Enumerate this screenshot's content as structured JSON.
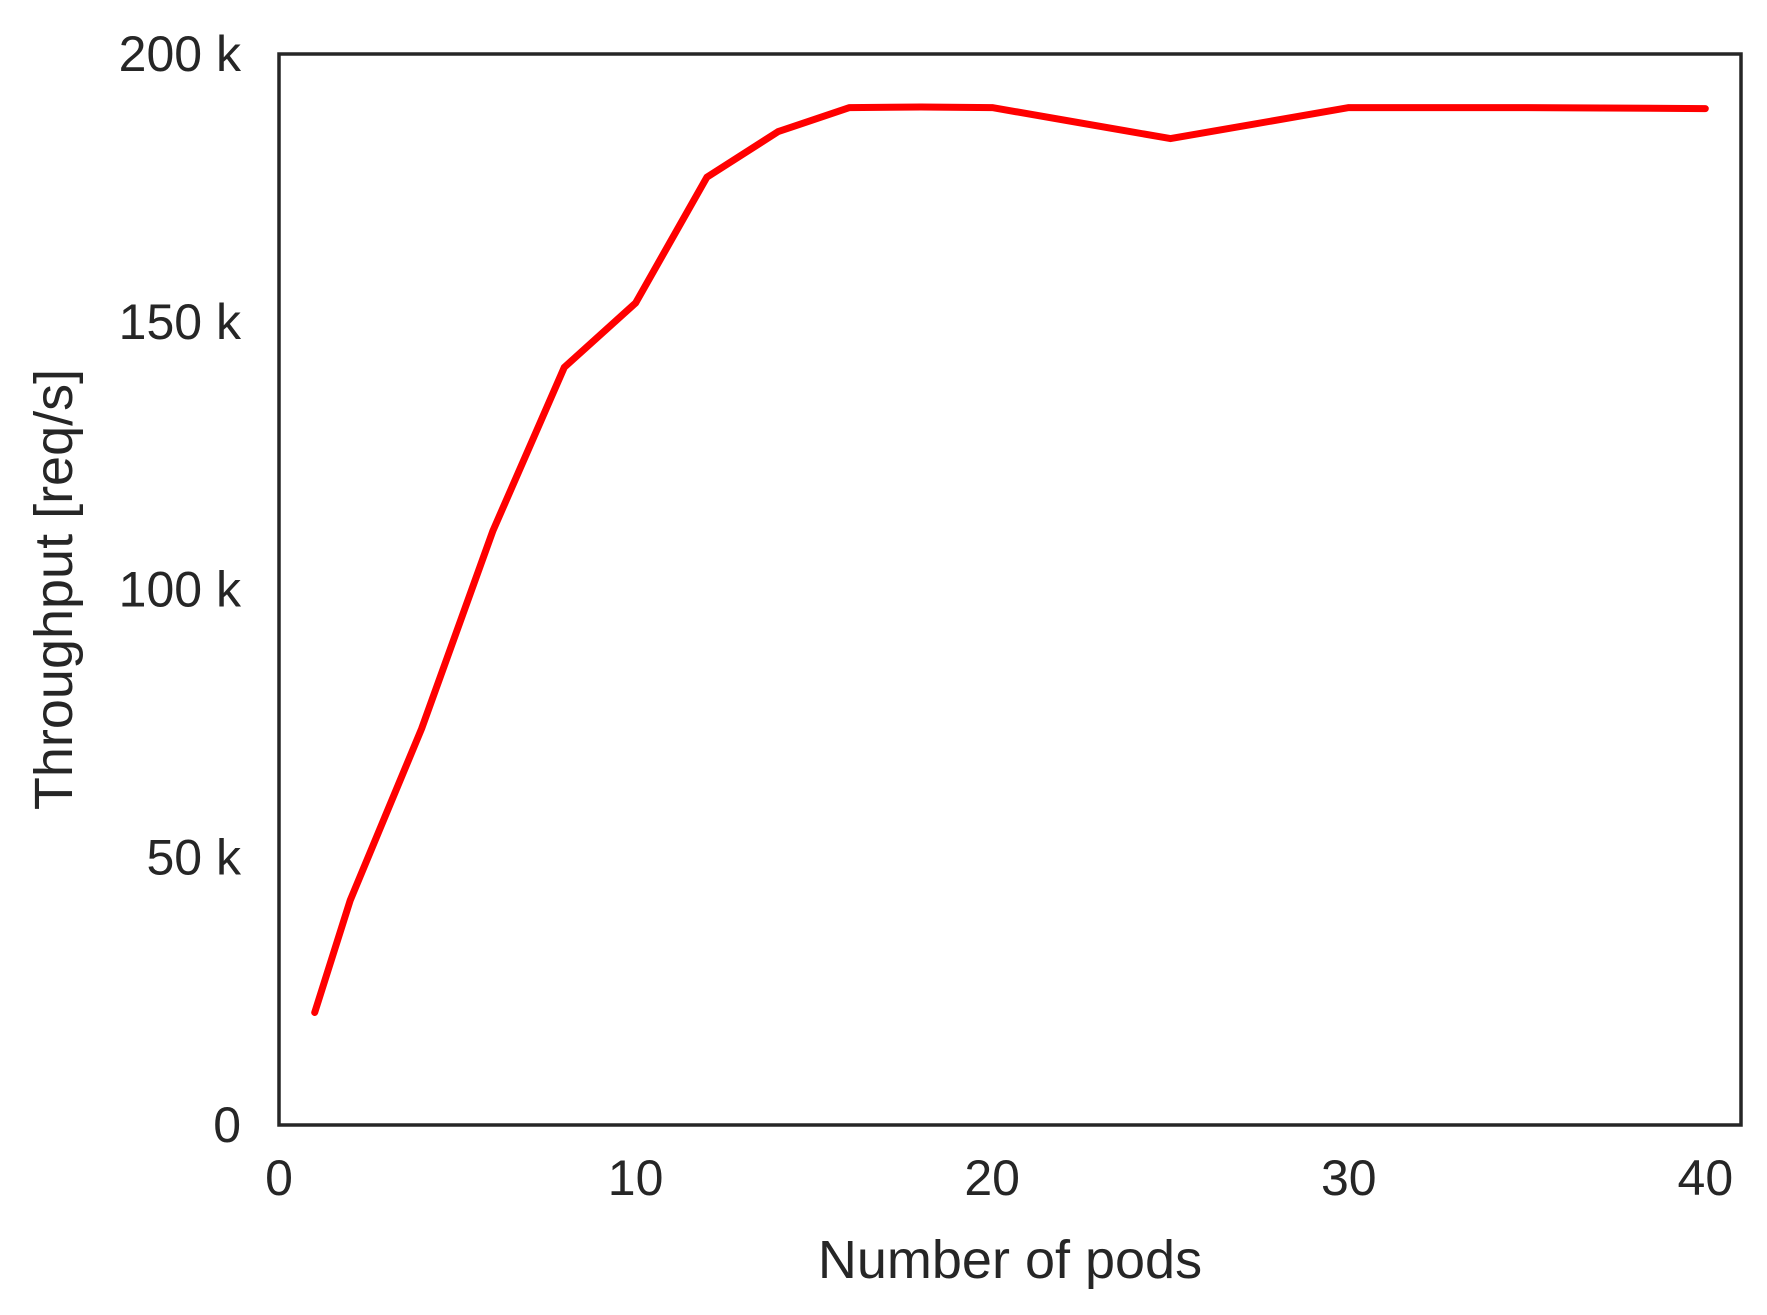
{
  "chart_data": {
    "type": "line",
    "title": "",
    "xlabel": "Number of pods",
    "ylabel": "Throughput [req/s]",
    "xlim": [
      0,
      41
    ],
    "ylim": [
      0,
      200000
    ],
    "x_ticks": [
      {
        "value": 0,
        "label": "0"
      },
      {
        "value": 10,
        "label": "10"
      },
      {
        "value": 20,
        "label": "20"
      },
      {
        "value": 30,
        "label": "30"
      },
      {
        "value": 40,
        "label": "40"
      }
    ],
    "y_ticks": [
      {
        "value": 0,
        "label": "0"
      },
      {
        "value": 50000,
        "label": "50 k"
      },
      {
        "value": 100000,
        "label": "100 k"
      },
      {
        "value": 150000,
        "label": "150 k"
      },
      {
        "value": 200000,
        "label": "200 k"
      }
    ],
    "grid": false,
    "legend": "none",
    "series": [
      {
        "color": "#ff0000",
        "x": [
          1,
          2,
          4,
          6,
          8,
          10,
          12,
          14,
          16,
          18,
          20,
          25,
          30,
          35,
          40
        ],
        "y": [
          21000,
          42000,
          74000,
          111000,
          141500,
          153500,
          177000,
          185500,
          190000,
          190100,
          190000,
          184200,
          190000,
          190000,
          189800
        ]
      }
    ]
  }
}
